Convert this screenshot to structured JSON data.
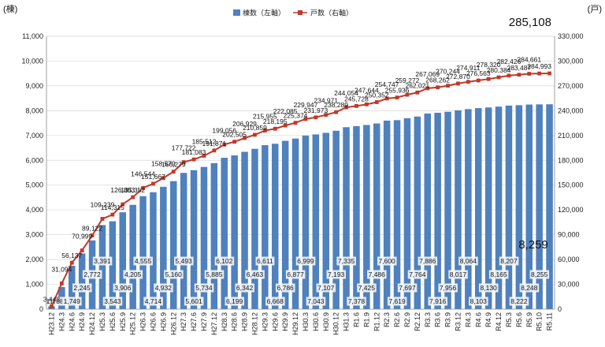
{
  "chart_data": {
    "type": "bar",
    "left_unit": "(棟)",
    "right_unit": "(戸)",
    "headline_total": "285,108",
    "headline_latest_bar": "8,259",
    "legend": {
      "bars": "棟数（左軸）",
      "line": "戸数（右軸）"
    },
    "colors": {
      "bar": "#4f81bd",
      "line": "#c0392b",
      "grid": "#d9d9d9"
    },
    "left_axis": {
      "min": 0,
      "max": 11000,
      "step": 1000,
      "tick_labels": [
        "0",
        "1,000",
        "2,000",
        "3,000",
        "4,000",
        "5,000",
        "6,000",
        "7,000",
        "8,000",
        "9,000",
        "10,000",
        "11,000"
      ]
    },
    "right_axis": {
      "min": 0,
      "max": 330000,
      "step": 30000,
      "tick_labels": [
        "0",
        "30,000",
        "60,000",
        "90,000",
        "120,000",
        "150,000",
        "180,000",
        "210,000",
        "240,000",
        "270,000",
        "300,000",
        "330,000"
      ]
    },
    "categories": [
      "H23.12",
      "H24.3",
      "H24.6",
      "H24.9",
      "H24.12",
      "H25.3",
      "H25.6",
      "H25.9",
      "H25.12",
      "H26.3",
      "H26.6",
      "H26.9",
      "H26.12",
      "H27.3",
      "H27.6",
      "H27.9",
      "H27.12",
      "H28.3",
      "H28.6",
      "H28.9",
      "H28.12",
      "H29.3",
      "H29.6",
      "H29.9",
      "H29.12",
      "H30.3",
      "H30.6",
      "H30.9",
      "H30.12",
      "H31.3",
      "R1.6",
      "R1.9",
      "R1.12",
      "R2.3",
      "R2.6",
      "R2.9",
      "R2.12",
      "R3.3",
      "R3.6",
      "R3.9",
      "R3.12",
      "R4.3",
      "R4.6",
      "R4.9",
      "R4.12",
      "R5.3",
      "R5.6",
      "R5.9",
      "R5.10",
      "R5.11"
    ],
    "series": [
      {
        "name": "棟数（左軸）",
        "axis": "left",
        "values": [
          112,
          889,
          1749,
          2245,
          2772,
          3391,
          3543,
          3906,
          4205,
          4555,
          4714,
          4932,
          5160,
          5493,
          5601,
          5734,
          5885,
          6102,
          6199,
          6342,
          6463,
          6611,
          6668,
          6786,
          6877,
          6999,
          7043,
          7107,
          7193,
          7335,
          7378,
          7425,
          7486,
          7600,
          7619,
          7697,
          7764,
          7886,
          7916,
          7956,
          8017,
          8064,
          8103,
          8130,
          8165,
          8207,
          8222,
          8248,
          8255,
          8259
        ],
        "labels": [
          "112",
          "889",
          "1,749",
          "2,245",
          "2,772",
          "3,391",
          "3,543",
          "3,906",
          "4,205",
          "4,555",
          "4,714",
          "4,932",
          "5,160",
          "5,493",
          "5,601",
          "5,734",
          "5,885",
          "6,102",
          "6,199",
          "6,342",
          "6,463",
          "6,611",
          "6,668",
          "6,786",
          "6,877",
          "6,999",
          "7,043",
          "7,107",
          "7,193",
          "7,335",
          "7,378",
          "7,425",
          "7,486",
          "7,600",
          "7,619",
          "7,697",
          "7,764",
          "7,886",
          "7,916",
          "7,956",
          "8,017",
          "8,064",
          "8,103",
          "8,130",
          "8,165",
          "8,207",
          "8,222",
          "8,248",
          "8,255",
          ""
        ]
      },
      {
        "name": "戸数（右軸）",
        "axis": "right",
        "values": [
          3448,
          31094,
          56137,
          70999,
          89122,
          109239,
          114315,
          126803,
          135352,
          146544,
          151667,
          158579,
          166279,
          177722,
          181083,
          185512,
          191871,
          199056,
          202505,
          206929,
          210859,
          215955,
          218195,
          222085,
          225374,
          229947,
          231973,
          234971,
          238289,
          244054,
          245728,
          247644,
          250352,
          254747,
          255936,
          259272,
          262021,
          267069,
          268262,
          270244,
          272870,
          274911,
          276563,
          278320,
          280384,
          282426,
          283487,
          284661,
          284993,
          285108
        ],
        "labels": [
          "3,448",
          "31,094",
          "56,137",
          "70,999",
          "89,122",
          "109,239",
          "114,315",
          "126,803",
          "135,352",
          "146,544",
          "151,667",
          "158,579",
          "166,279",
          "177,722",
          "181,083",
          "185,512",
          "191,871",
          "199,056",
          "202,505",
          "206,929",
          "210,859",
          "215,955",
          "218,195",
          "222,085",
          "225,374",
          "229,947",
          "231,973",
          "234,971",
          "238,289",
          "244,054",
          "245,728",
          "247,644",
          "250,352",
          "254,747",
          "255,936",
          "259,272",
          "262,021",
          "267,069",
          "268,262",
          "270,244",
          "272,870",
          "274,911",
          "276,563",
          "278,320",
          "280,384",
          "282,426",
          "283,487",
          "284,661",
          "284,993",
          ""
        ]
      }
    ]
  }
}
